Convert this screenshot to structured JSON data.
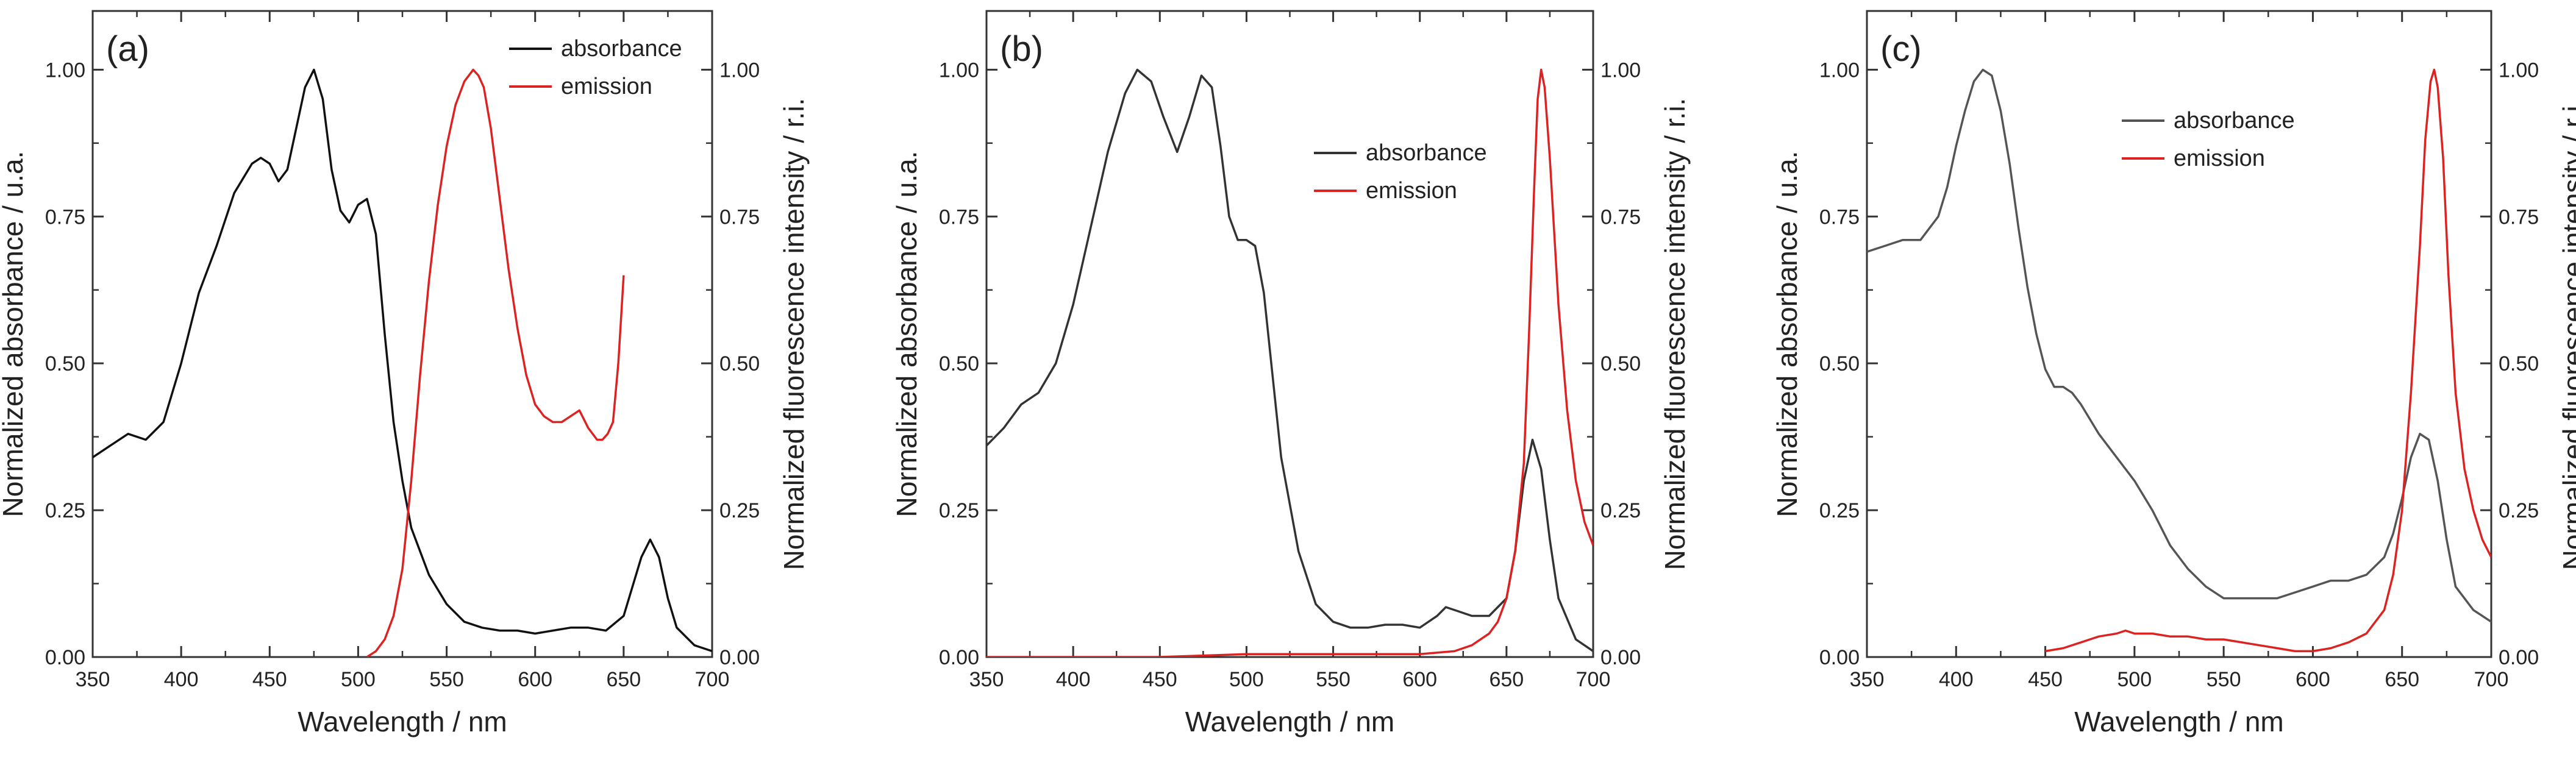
{
  "chart_data": [
    {
      "type": "line",
      "panel_label": "(a)",
      "xlabel": "Wavelength / nm",
      "ylabel_left": "Normalized absorbance / u.a.",
      "ylabel_right": "Normalized fluorescence intensity / r.i.",
      "xlim": [
        350,
        700
      ],
      "ylim": [
        0,
        1.1
      ],
      "xticks": [
        "350",
        "400",
        "450",
        "500",
        "550",
        "600",
        "650",
        "700"
      ],
      "yticks": [
        "0.00",
        "0.25",
        "0.50",
        "0.75",
        "1.00"
      ],
      "legend": {
        "position": "top-right",
        "entries": [
          "absorbance",
          "emission"
        ]
      },
      "series": [
        {
          "name": "absorbance",
          "color": "#111111",
          "x": [
            350,
            360,
            370,
            380,
            390,
            400,
            410,
            420,
            430,
            440,
            445,
            450,
            455,
            460,
            465,
            470,
            475,
            480,
            485,
            490,
            495,
            500,
            505,
            510,
            515,
            520,
            525,
            530,
            540,
            550,
            560,
            570,
            580,
            590,
            600,
            610,
            620,
            630,
            640,
            650,
            655,
            660,
            665,
            670,
            675,
            680,
            690,
            700
          ],
          "y": [
            0.34,
            0.36,
            0.38,
            0.37,
            0.4,
            0.5,
            0.62,
            0.7,
            0.79,
            0.84,
            0.85,
            0.84,
            0.81,
            0.83,
            0.9,
            0.97,
            1.0,
            0.95,
            0.83,
            0.76,
            0.74,
            0.77,
            0.78,
            0.72,
            0.55,
            0.4,
            0.3,
            0.22,
            0.14,
            0.09,
            0.06,
            0.05,
            0.045,
            0.045,
            0.04,
            0.045,
            0.05,
            0.05,
            0.045,
            0.07,
            0.12,
            0.17,
            0.2,
            0.17,
            0.1,
            0.05,
            0.02,
            0.01
          ]
        },
        {
          "name": "emission",
          "color": "#dd2222",
          "x": [
            505,
            510,
            515,
            520,
            525,
            530,
            535,
            540,
            545,
            550,
            555,
            560,
            565,
            568,
            571,
            575,
            580,
            585,
            590,
            595,
            600,
            605,
            610,
            615,
            620,
            625,
            630,
            635,
            638,
            641,
            644,
            647,
            650
          ],
          "y": [
            0.0,
            0.01,
            0.03,
            0.07,
            0.15,
            0.3,
            0.48,
            0.64,
            0.77,
            0.87,
            0.94,
            0.98,
            1.0,
            0.99,
            0.97,
            0.9,
            0.78,
            0.66,
            0.56,
            0.48,
            0.43,
            0.41,
            0.4,
            0.4,
            0.41,
            0.42,
            0.39,
            0.37,
            0.37,
            0.38,
            0.4,
            0.5,
            0.65
          ]
        }
      ]
    },
    {
      "type": "line",
      "panel_label": "(b)",
      "xlabel": "Wavelength / nm",
      "ylabel_left": "Normalized absorbance / u.a.",
      "ylabel_right": "Normalized fluorescence intensity / r.i.",
      "xlim": [
        350,
        700
      ],
      "ylim": [
        0,
        1.1
      ],
      "xticks": [
        "350",
        "400",
        "450",
        "500",
        "550",
        "600",
        "650",
        "700"
      ],
      "yticks": [
        "0.00",
        "0.25",
        "0.50",
        "0.75",
        "1.00"
      ],
      "legend": {
        "position": "center-right",
        "entries": [
          "absorbance",
          "emission"
        ]
      },
      "series": [
        {
          "name": "absorbance",
          "color": "#333333",
          "x": [
            350,
            360,
            370,
            380,
            390,
            400,
            410,
            420,
            430,
            437,
            445,
            452,
            460,
            467,
            474,
            480,
            485,
            490,
            495,
            500,
            505,
            510,
            515,
            520,
            530,
            540,
            550,
            560,
            570,
            580,
            590,
            600,
            610,
            615,
            620,
            630,
            640,
            650,
            655,
            660,
            665,
            670,
            675,
            680,
            690,
            700
          ],
          "y": [
            0.36,
            0.39,
            0.43,
            0.45,
            0.5,
            0.6,
            0.73,
            0.86,
            0.96,
            1.0,
            0.98,
            0.92,
            0.86,
            0.92,
            0.99,
            0.97,
            0.87,
            0.75,
            0.71,
            0.71,
            0.7,
            0.62,
            0.48,
            0.34,
            0.18,
            0.09,
            0.06,
            0.05,
            0.05,
            0.055,
            0.055,
            0.05,
            0.07,
            0.085,
            0.08,
            0.07,
            0.07,
            0.1,
            0.18,
            0.3,
            0.37,
            0.32,
            0.2,
            0.1,
            0.03,
            0.01
          ]
        },
        {
          "name": "emission",
          "color": "#dd2222",
          "x": [
            350,
            400,
            450,
            500,
            550,
            600,
            620,
            630,
            640,
            645,
            650,
            655,
            660,
            663,
            666,
            668,
            670,
            672,
            675,
            680,
            685,
            690,
            695,
            700
          ],
          "y": [
            0.0,
            0.0,
            0.0,
            0.005,
            0.005,
            0.005,
            0.01,
            0.02,
            0.04,
            0.06,
            0.1,
            0.18,
            0.33,
            0.55,
            0.8,
            0.95,
            1.0,
            0.97,
            0.85,
            0.6,
            0.42,
            0.3,
            0.23,
            0.19
          ]
        }
      ]
    },
    {
      "type": "line",
      "panel_label": "(c)",
      "xlabel": "Wavelength / nm",
      "ylabel_left": "Normalized absorbance / u.a.",
      "ylabel_right": "Normalized fluorescence intensity / r.i.",
      "xlim": [
        350,
        700
      ],
      "ylim": [
        0,
        1.1
      ],
      "xticks": [
        "350",
        "400",
        "450",
        "500",
        "550",
        "600",
        "650",
        "700"
      ],
      "yticks": [
        "0.00",
        "0.25",
        "0.50",
        "0.75",
        "1.00"
      ],
      "legend": {
        "position": "top-center",
        "entries": [
          "absorbance",
          "emission"
        ]
      },
      "series": [
        {
          "name": "absorbance",
          "color": "#555555",
          "x": [
            350,
            360,
            370,
            380,
            390,
            395,
            400,
            405,
            410,
            415,
            420,
            425,
            430,
            435,
            440,
            445,
            450,
            455,
            460,
            465,
            470,
            480,
            490,
            500,
            510,
            520,
            530,
            540,
            550,
            560,
            570,
            580,
            590,
            600,
            610,
            620,
            630,
            640,
            645,
            650,
            655,
            660,
            665,
            670,
            675,
            680,
            690,
            700
          ],
          "y": [
            0.69,
            0.7,
            0.71,
            0.71,
            0.75,
            0.8,
            0.87,
            0.93,
            0.98,
            1.0,
            0.99,
            0.93,
            0.84,
            0.73,
            0.63,
            0.55,
            0.49,
            0.46,
            0.46,
            0.45,
            0.43,
            0.38,
            0.34,
            0.3,
            0.25,
            0.19,
            0.15,
            0.12,
            0.1,
            0.1,
            0.1,
            0.1,
            0.11,
            0.12,
            0.13,
            0.13,
            0.14,
            0.17,
            0.21,
            0.27,
            0.34,
            0.38,
            0.37,
            0.3,
            0.2,
            0.12,
            0.08,
            0.06
          ]
        },
        {
          "name": "emission",
          "color": "#dd2222",
          "x": [
            450,
            460,
            470,
            480,
            490,
            495,
            500,
            510,
            520,
            530,
            540,
            550,
            560,
            570,
            580,
            590,
            600,
            610,
            620,
            630,
            640,
            645,
            650,
            655,
            660,
            663,
            666,
            668,
            670,
            673,
            676,
            680,
            685,
            690,
            695,
            700
          ],
          "y": [
            0.01,
            0.015,
            0.025,
            0.035,
            0.04,
            0.045,
            0.04,
            0.04,
            0.035,
            0.035,
            0.03,
            0.03,
            0.025,
            0.02,
            0.015,
            0.01,
            0.01,
            0.015,
            0.025,
            0.04,
            0.08,
            0.14,
            0.25,
            0.45,
            0.7,
            0.88,
            0.98,
            1.0,
            0.97,
            0.85,
            0.65,
            0.45,
            0.32,
            0.25,
            0.2,
            0.17
          ]
        }
      ]
    }
  ]
}
